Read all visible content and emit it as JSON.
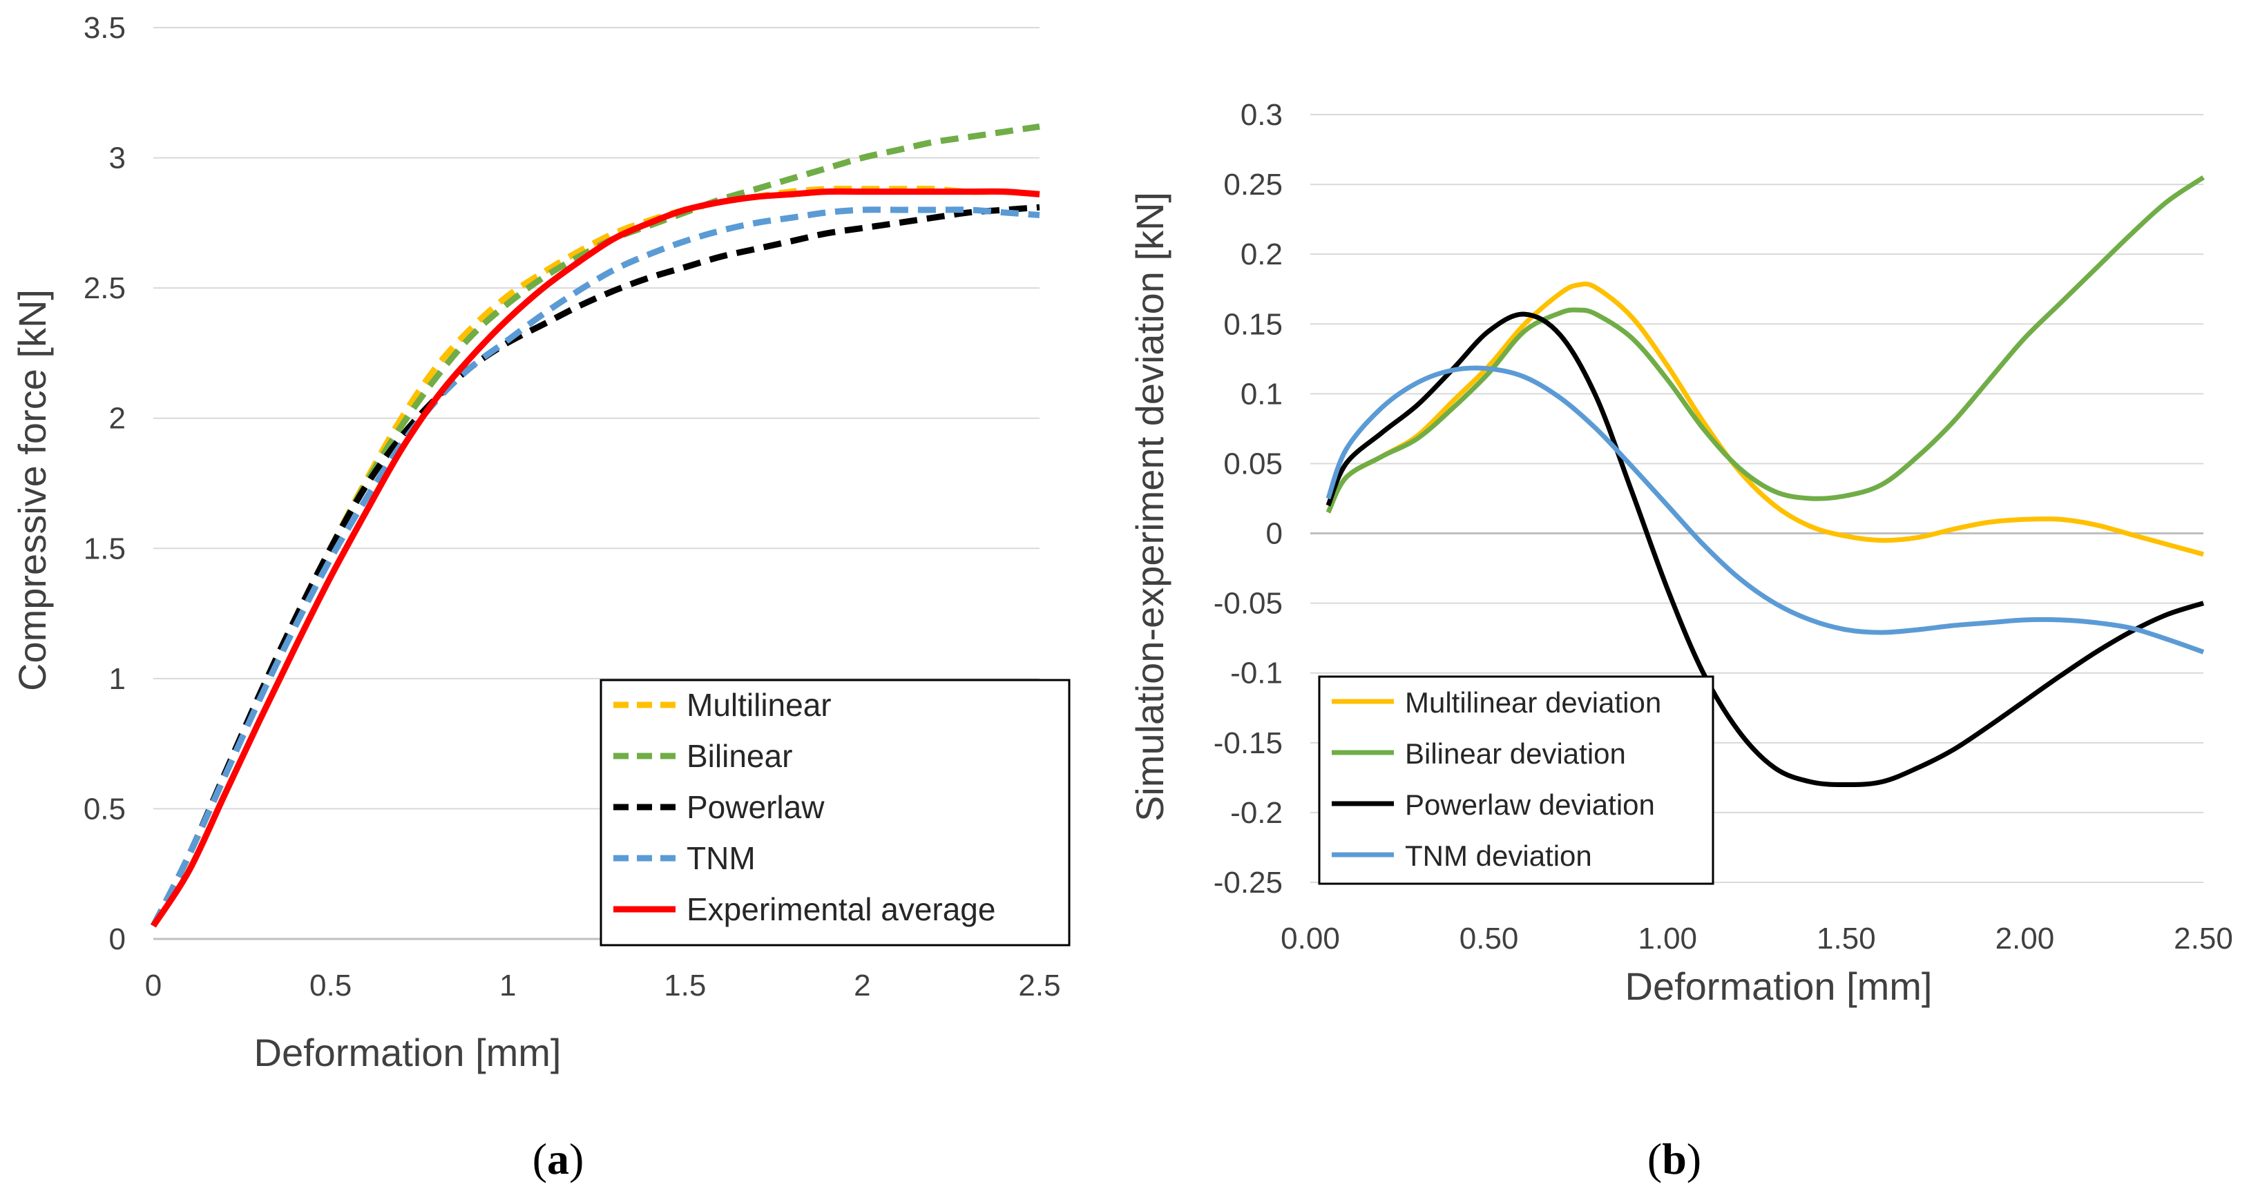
{
  "colors": {
    "multilinear": "#ffc000",
    "bilinear": "#70ad47",
    "powerlaw": "#000000",
    "tnm": "#5b9bd5",
    "experimental": "#ff0000",
    "grid": "#d9d9d9",
    "axis": "#bfbfbf"
  },
  "chart_data": [
    {
      "id": "a",
      "type": "line",
      "caption": {
        "open": "(",
        "letter": "a",
        "close": ")"
      },
      "xlabel": "Deformation [mm]",
      "ylabel": "Compressive force [kN]",
      "xlim": [
        0,
        2.5
      ],
      "ylim": [
        0,
        3.5
      ],
      "xticks": [
        "0",
        "0.5",
        "1",
        "1.5",
        "2",
        "2.5"
      ],
      "yticks": [
        "0",
        "0.5",
        "1",
        "1.5",
        "2",
        "2.5",
        "3",
        "3.5"
      ],
      "grid": true,
      "legend_position": "bottom-right",
      "series": [
        {
          "name": "Multilinear",
          "color_key": "multilinear",
          "dashed": true,
          "x": [
            0.0,
            0.1,
            0.2,
            0.3,
            0.4,
            0.5,
            0.6,
            0.7,
            0.8,
            0.9,
            1.0,
            1.1,
            1.2,
            1.3,
            1.4,
            1.5,
            1.6,
            1.7,
            1.8,
            1.9,
            2.0,
            2.1,
            2.2,
            2.3,
            2.4,
            2.5
          ],
          "y": [
            0.05,
            0.32,
            0.62,
            0.93,
            1.22,
            1.5,
            1.76,
            2.0,
            2.2,
            2.35,
            2.47,
            2.56,
            2.64,
            2.71,
            2.76,
            2.8,
            2.83,
            2.85,
            2.87,
            2.88,
            2.88,
            2.88,
            2.88,
            2.87,
            2.87,
            2.86
          ]
        },
        {
          "name": "Bilinear",
          "color_key": "bilinear",
          "dashed": true,
          "x": [
            0.0,
            0.1,
            0.2,
            0.3,
            0.4,
            0.5,
            0.6,
            0.7,
            0.8,
            0.9,
            1.0,
            1.1,
            1.2,
            1.3,
            1.4,
            1.5,
            1.6,
            1.7,
            1.8,
            1.9,
            2.0,
            2.1,
            2.2,
            2.3,
            2.4,
            2.5
          ],
          "y": [
            0.05,
            0.32,
            0.62,
            0.93,
            1.22,
            1.5,
            1.75,
            1.97,
            2.16,
            2.32,
            2.44,
            2.54,
            2.62,
            2.69,
            2.74,
            2.79,
            2.84,
            2.88,
            2.92,
            2.96,
            3.0,
            3.03,
            3.06,
            3.08,
            3.1,
            3.12
          ]
        },
        {
          "name": "Powerlaw",
          "color_key": "powerlaw",
          "dashed": true,
          "x": [
            0.0,
            0.1,
            0.2,
            0.3,
            0.4,
            0.5,
            0.6,
            0.7,
            0.8,
            0.9,
            1.0,
            1.1,
            1.2,
            1.3,
            1.4,
            1.5,
            1.6,
            1.7,
            1.8,
            1.9,
            2.0,
            2.1,
            2.2,
            2.3,
            2.4,
            2.5
          ],
          "y": [
            0.05,
            0.32,
            0.63,
            0.94,
            1.23,
            1.5,
            1.74,
            1.93,
            2.08,
            2.2,
            2.29,
            2.36,
            2.43,
            2.49,
            2.54,
            2.58,
            2.62,
            2.65,
            2.68,
            2.71,
            2.73,
            2.75,
            2.77,
            2.79,
            2.8,
            2.81
          ]
        },
        {
          "name": "TNM",
          "color_key": "tnm",
          "dashed": true,
          "x": [
            0.0,
            0.1,
            0.2,
            0.3,
            0.4,
            0.5,
            0.6,
            0.7,
            0.8,
            0.9,
            1.0,
            1.1,
            1.2,
            1.3,
            1.4,
            1.5,
            1.6,
            1.7,
            1.8,
            1.9,
            2.0,
            2.1,
            2.2,
            2.3,
            2.4,
            2.5
          ],
          "y": [
            0.05,
            0.32,
            0.62,
            0.92,
            1.2,
            1.46,
            1.69,
            1.9,
            2.07,
            2.2,
            2.3,
            2.4,
            2.49,
            2.57,
            2.63,
            2.68,
            2.72,
            2.75,
            2.77,
            2.79,
            2.8,
            2.8,
            2.8,
            2.8,
            2.79,
            2.78
          ]
        },
        {
          "name": "Experimental average",
          "color_key": "experimental",
          "dashed": false,
          "x": [
            0.0,
            0.1,
            0.2,
            0.3,
            0.4,
            0.5,
            0.6,
            0.7,
            0.8,
            0.9,
            1.0,
            1.1,
            1.2,
            1.3,
            1.4,
            1.5,
            1.6,
            1.7,
            1.8,
            1.9,
            2.0,
            2.1,
            2.2,
            2.3,
            2.4,
            2.5
          ],
          "y": [
            0.05,
            0.26,
            0.55,
            0.84,
            1.12,
            1.39,
            1.64,
            1.88,
            2.08,
            2.24,
            2.38,
            2.5,
            2.6,
            2.69,
            2.75,
            2.8,
            2.83,
            2.85,
            2.86,
            2.87,
            2.87,
            2.87,
            2.87,
            2.87,
            2.87,
            2.86
          ]
        }
      ]
    },
    {
      "id": "b",
      "type": "line",
      "caption": {
        "open": "(",
        "letter": "b",
        "close": ")"
      },
      "xlabel": "Deformation [mm]",
      "ylabel": "Simulation-experiment  deviation [kN]",
      "xlim": [
        0,
        2.5
      ],
      "ylim": [
        -0.25,
        0.3
      ],
      "xticks": [
        "0.00",
        "0.50",
        "1.00",
        "1.50",
        "2.00",
        "2.50"
      ],
      "yticks": [
        "-0.25",
        "-0.2",
        "-0.15",
        "-0.1",
        "-0.05",
        "0",
        "0.05",
        "0.1",
        "0.15",
        "0.2",
        "0.25",
        "0.3"
      ],
      "grid": true,
      "legend_position": "bottom-left",
      "series": [
        {
          "name": "Multilinear deviation",
          "color_key": "multilinear",
          "dashed": false,
          "x": [
            0.05,
            0.1,
            0.2,
            0.3,
            0.4,
            0.5,
            0.6,
            0.7,
            0.75,
            0.8,
            0.9,
            1.0,
            1.1,
            1.2,
            1.3,
            1.4,
            1.5,
            1.6,
            1.7,
            1.8,
            1.9,
            2.0,
            2.1,
            2.2,
            2.3,
            2.4,
            2.5
          ],
          "y": [
            0.015,
            0.04,
            0.055,
            0.07,
            0.095,
            0.12,
            0.15,
            0.172,
            0.178,
            0.176,
            0.155,
            0.12,
            0.08,
            0.045,
            0.02,
            0.005,
            -0.002,
            -0.005,
            -0.003,
            0.003,
            0.008,
            0.01,
            0.01,
            0.006,
            -0.001,
            -0.008,
            -0.015
          ]
        },
        {
          "name": "Bilinear deviation",
          "color_key": "bilinear",
          "dashed": false,
          "x": [
            0.05,
            0.1,
            0.2,
            0.3,
            0.4,
            0.5,
            0.6,
            0.7,
            0.75,
            0.8,
            0.9,
            1.0,
            1.1,
            1.2,
            1.3,
            1.4,
            1.5,
            1.6,
            1.7,
            1.8,
            1.9,
            2.0,
            2.1,
            2.2,
            2.3,
            2.4,
            2.5
          ],
          "y": [
            0.015,
            0.04,
            0.055,
            0.068,
            0.09,
            0.115,
            0.145,
            0.158,
            0.16,
            0.157,
            0.14,
            0.11,
            0.075,
            0.047,
            0.03,
            0.025,
            0.027,
            0.035,
            0.055,
            0.08,
            0.11,
            0.14,
            0.165,
            0.19,
            0.215,
            0.238,
            0.255
          ]
        },
        {
          "name": "Powerlaw deviation",
          "color_key": "powerlaw",
          "dashed": false,
          "x": [
            0.05,
            0.1,
            0.2,
            0.3,
            0.4,
            0.5,
            0.6,
            0.7,
            0.8,
            0.9,
            1.0,
            1.1,
            1.2,
            1.3,
            1.4,
            1.5,
            1.6,
            1.7,
            1.8,
            1.9,
            2.0,
            2.1,
            2.2,
            2.3,
            2.4,
            2.5
          ],
          "y": [
            0.02,
            0.05,
            0.072,
            0.092,
            0.118,
            0.145,
            0.157,
            0.142,
            0.098,
            0.03,
            -0.04,
            -0.1,
            -0.142,
            -0.168,
            -0.178,
            -0.18,
            -0.178,
            -0.168,
            -0.155,
            -0.138,
            -0.12,
            -0.102,
            -0.085,
            -0.07,
            -0.058,
            -0.05
          ]
        },
        {
          "name": "TNM deviation",
          "color_key": "tnm",
          "dashed": false,
          "x": [
            0.05,
            0.1,
            0.2,
            0.3,
            0.4,
            0.5,
            0.6,
            0.7,
            0.8,
            0.9,
            1.0,
            1.1,
            1.2,
            1.3,
            1.4,
            1.5,
            1.6,
            1.7,
            1.8,
            1.9,
            2.0,
            2.1,
            2.2,
            2.3,
            2.4,
            2.5
          ],
          "y": [
            0.025,
            0.06,
            0.09,
            0.108,
            0.117,
            0.118,
            0.112,
            0.097,
            0.075,
            0.048,
            0.02,
            -0.008,
            -0.032,
            -0.05,
            -0.062,
            -0.069,
            -0.071,
            -0.069,
            -0.066,
            -0.064,
            -0.062,
            -0.062,
            -0.064,
            -0.068,
            -0.076,
            -0.085
          ]
        }
      ]
    }
  ]
}
